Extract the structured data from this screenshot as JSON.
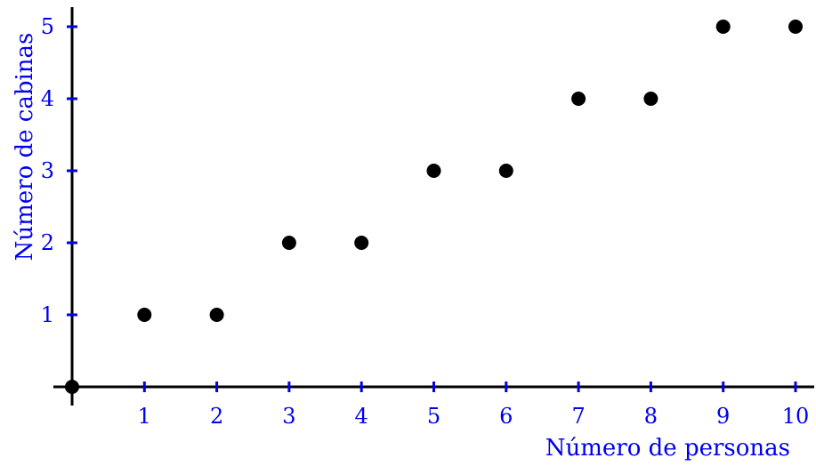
{
  "chart_data": {
    "type": "scatter",
    "xlabel": "Número de personas",
    "ylabel": "Número de cabinas",
    "xlim": [
      0,
      10
    ],
    "ylim": [
      0,
      5
    ],
    "x_ticks": [
      "1",
      "2",
      "3",
      "4",
      "5",
      "6",
      "7",
      "8",
      "9",
      "10"
    ],
    "y_ticks": [
      "1",
      "2",
      "3",
      "4",
      "5"
    ],
    "grid": false,
    "points": [
      {
        "x": 0,
        "y": 0
      },
      {
        "x": 1,
        "y": 1
      },
      {
        "x": 2,
        "y": 1
      },
      {
        "x": 3,
        "y": 2
      },
      {
        "x": 4,
        "y": 2
      },
      {
        "x": 5,
        "y": 3
      },
      {
        "x": 6,
        "y": 3
      },
      {
        "x": 7,
        "y": 4
      },
      {
        "x": 8,
        "y": 4
      },
      {
        "x": 9,
        "y": 5
      },
      {
        "x": 10,
        "y": 5
      }
    ],
    "colors": {
      "axis": "#000000",
      "ticks": "#0000ee",
      "labels": "#0000ee",
      "points": "#000000"
    }
  }
}
